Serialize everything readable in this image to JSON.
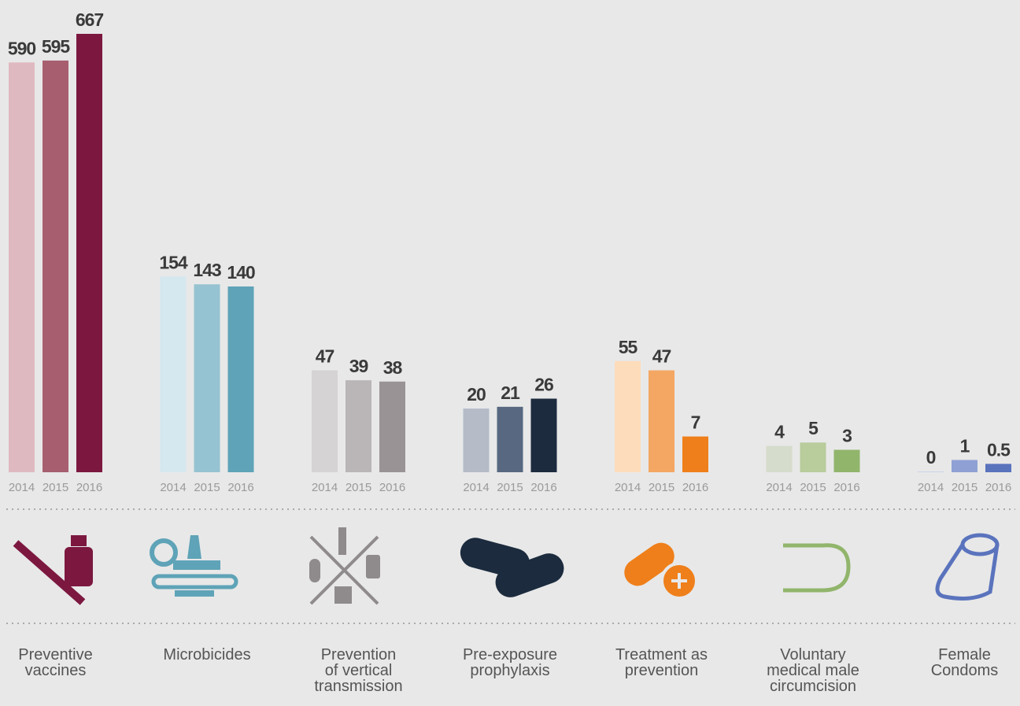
{
  "chart_data": {
    "type": "bar",
    "categories": [
      "Preventive\nvaccines",
      "Microbicides",
      "Prevention\nof vertical\ntransmission",
      "Pre-exposure\nprophylaxis",
      "Treatment as\nprevention",
      "Voluntary\nmedical male\ncircumcision",
      "Female\nCondoms"
    ],
    "series": [
      {
        "name": "2014",
        "colors": [
          "#dfb9c0",
          "#d5e7ef",
          "#d5d3d3",
          "#b5bcc8",
          "#fddcbb",
          "#d6dccb",
          "#c9d3ea"
        ],
        "values": [
          590,
          154,
          47,
          20,
          55,
          4,
          0
        ]
      },
      {
        "name": "2015",
        "colors": [
          "#a75f70",
          "#96c3d1",
          "#bab5b7",
          "#576880",
          "#f4a762",
          "#b8cc9c",
          "#8fa1d4"
        ],
        "values": [
          595,
          143,
          39,
          21,
          47,
          5,
          1
        ]
      },
      {
        "name": "2016",
        "colors": [
          "#7c1840",
          "#5ea3b7",
          "#9a9395",
          "#1c2b3e",
          "#ef7f1a",
          "#91b56b",
          "#5a73bd"
        ],
        "values": [
          667,
          140,
          38,
          26,
          7,
          3,
          0.5
        ]
      }
    ]
  }
}
